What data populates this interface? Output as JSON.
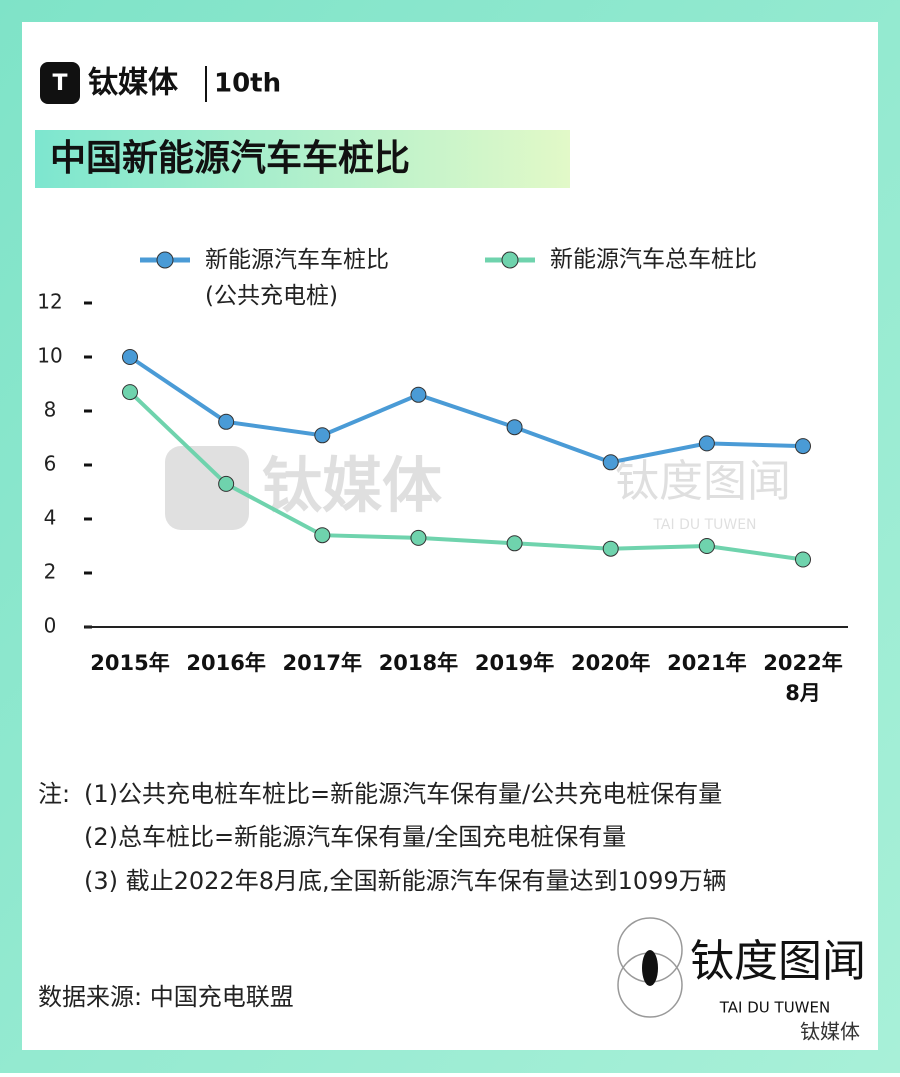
{
  "header": {
    "brand": "钛媒体",
    "anniversary": "10th"
  },
  "chart_data": {
    "type": "line",
    "title": "中国新能源汽车车桩比",
    "categories": [
      "2015年",
      "2016年",
      "2017年",
      "2018年",
      "2019年",
      "2020年",
      "2021年",
      "2022年\n8月"
    ],
    "series": [
      {
        "name": "新能源汽车车桩比\n(公共充电桩)",
        "color": "#4a9bd6",
        "values": [
          10.0,
          7.6,
          7.1,
          8.6,
          7.4,
          6.1,
          6.8,
          6.7
        ]
      },
      {
        "name": "新能源汽车总车桩比",
        "color": "#6fd3ad",
        "values": [
          8.7,
          5.3,
          3.4,
          3.3,
          3.1,
          2.9,
          3.0,
          2.5
        ]
      }
    ],
    "ylim": [
      0,
      12
    ],
    "yticks": [
      0,
      2,
      4,
      6,
      8,
      10,
      12
    ]
  },
  "watermark": {
    "brand": "钛媒体",
    "sub": "钛度图闻",
    "sub_en": "TAI DU TUWEN"
  },
  "notes": {
    "label": "注:",
    "lines": [
      "(1)公共充电桩车桩比=新能源汽车保有量/公共充电桩保有量",
      "(2)总车桩比=新能源汽车保有量/全国充电桩保有量",
      "(3) 截止2022年8月底,全国新能源汽车保有量达到1099万辆"
    ]
  },
  "source": "数据来源: 中国充电联盟",
  "footer": {
    "logo": "钛度图闻",
    "logo_en": "TAI DU TUWEN",
    "wechat": "钛媒体"
  }
}
